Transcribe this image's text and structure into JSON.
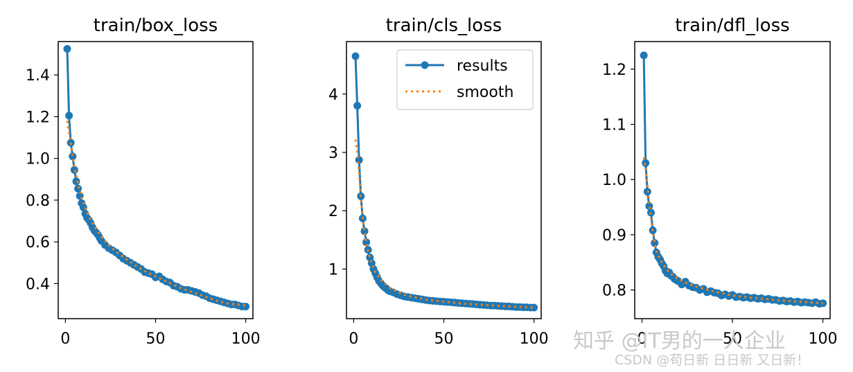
{
  "chart_data": [
    {
      "type": "line",
      "title": "train/box_loss",
      "xlim": [
        -4,
        104
      ],
      "ylim": [
        0.232,
        1.56
      ],
      "xticks": [
        0,
        50,
        100
      ],
      "yticks": [
        0.4,
        0.6,
        0.8,
        1.0,
        1.2,
        1.4
      ],
      "ytick_labels": [
        "0.4",
        "0.6",
        "0.8",
        "1.0",
        "1.2",
        "1.4"
      ],
      "series": [
        {
          "name": "results",
          "x": [
            1,
            2,
            3,
            4,
            5,
            6,
            7,
            8,
            9,
            10,
            11,
            12,
            13,
            14,
            15,
            16,
            17,
            18,
            19,
            20,
            22,
            24,
            26,
            28,
            30,
            32,
            34,
            36,
            38,
            40,
            42,
            44,
            46,
            48,
            50,
            52,
            54,
            56,
            58,
            60,
            62,
            64,
            66,
            68,
            70,
            72,
            74,
            76,
            78,
            80,
            82,
            84,
            86,
            88,
            90,
            92,
            94,
            96,
            98,
            100
          ],
          "y": [
            1.525,
            1.205,
            1.075,
            1.01,
            0.945,
            0.89,
            0.855,
            0.82,
            0.785,
            0.765,
            0.735,
            0.715,
            0.705,
            0.69,
            0.67,
            0.655,
            0.645,
            0.635,
            0.62,
            0.605,
            0.585,
            0.57,
            0.56,
            0.55,
            0.535,
            0.52,
            0.51,
            0.5,
            0.49,
            0.48,
            0.47,
            0.455,
            0.45,
            0.445,
            0.43,
            0.435,
            0.42,
            0.41,
            0.405,
            0.39,
            0.385,
            0.375,
            0.37,
            0.37,
            0.365,
            0.36,
            0.355,
            0.345,
            0.34,
            0.33,
            0.325,
            0.32,
            0.315,
            0.31,
            0.305,
            0.3,
            0.3,
            0.295,
            0.29,
            0.29
          ]
        },
        {
          "name": "smooth",
          "x": [
            1,
            3,
            5,
            7,
            9,
            12,
            15,
            20,
            25,
            30,
            35,
            40,
            45,
            50,
            55,
            60,
            65,
            70,
            75,
            80,
            85,
            90,
            95,
            100
          ],
          "y": [
            1.18,
            1.07,
            0.96,
            0.88,
            0.81,
            0.74,
            0.69,
            0.625,
            0.575,
            0.54,
            0.51,
            0.48,
            0.455,
            0.435,
            0.415,
            0.395,
            0.375,
            0.36,
            0.345,
            0.33,
            0.315,
            0.305,
            0.3,
            0.295
          ]
        }
      ]
    },
    {
      "type": "line",
      "title": "train/cls_loss",
      "xlim": [
        -4,
        104
      ],
      "ylim": [
        0.15,
        4.9
      ],
      "xticks": [
        0,
        50,
        100
      ],
      "yticks": [
        1,
        2,
        3,
        4
      ],
      "ytick_labels": [
        "1",
        "2",
        "3",
        "4"
      ],
      "legend": {
        "placement": "upper right",
        "entries": [
          "results",
          "smooth"
        ]
      },
      "series": [
        {
          "name": "results",
          "x": [
            1,
            2,
            3,
            4,
            5,
            6,
            7,
            8,
            9,
            10,
            11,
            12,
            13,
            14,
            15,
            16,
            17,
            18,
            19,
            20,
            22,
            24,
            26,
            28,
            30,
            32,
            34,
            36,
            38,
            40,
            42,
            44,
            46,
            48,
            50,
            52,
            54,
            56,
            58,
            60,
            62,
            64,
            66,
            68,
            70,
            72,
            74,
            76,
            78,
            80,
            82,
            84,
            86,
            88,
            90,
            92,
            94,
            96,
            98,
            100
          ],
          "y": [
            4.65,
            3.8,
            2.87,
            2.25,
            1.87,
            1.65,
            1.46,
            1.33,
            1.2,
            1.1,
            1.0,
            0.93,
            0.86,
            0.8,
            0.76,
            0.72,
            0.69,
            0.67,
            0.64,
            0.62,
            0.6,
            0.57,
            0.55,
            0.53,
            0.52,
            0.51,
            0.5,
            0.49,
            0.48,
            0.47,
            0.46,
            0.455,
            0.45,
            0.445,
            0.44,
            0.435,
            0.43,
            0.425,
            0.42,
            0.415,
            0.41,
            0.405,
            0.4,
            0.395,
            0.39,
            0.385,
            0.38,
            0.375,
            0.375,
            0.37,
            0.365,
            0.36,
            0.36,
            0.355,
            0.35,
            0.35,
            0.345,
            0.345,
            0.34,
            0.34
          ]
        },
        {
          "name": "smooth",
          "x": [
            1,
            2,
            3,
            4,
            5,
            6,
            7,
            8,
            10,
            12,
            15,
            20,
            25,
            30,
            40,
            50,
            60,
            70,
            80,
            90,
            100
          ],
          "y": [
            3.22,
            3.0,
            2.65,
            2.2,
            1.9,
            1.65,
            1.45,
            1.3,
            1.1,
            0.95,
            0.82,
            0.68,
            0.6,
            0.54,
            0.48,
            0.44,
            0.41,
            0.39,
            0.37,
            0.355,
            0.34
          ]
        }
      ]
    },
    {
      "type": "line",
      "title": "train/dfl_loss",
      "xlim": [
        -4,
        104
      ],
      "ylim": [
        0.748,
        1.25
      ],
      "xticks": [
        0,
        50,
        100
      ],
      "yticks": [
        0.8,
        0.9,
        1.0,
        1.1,
        1.2
      ],
      "ytick_labels": [
        "0.8",
        "0.9",
        "1.0",
        "1.1",
        "1.2"
      ],
      "series": [
        {
          "name": "results",
          "x": [
            1,
            2,
            3,
            4,
            5,
            6,
            7,
            8,
            9,
            10,
            11,
            12,
            13,
            14,
            15,
            16,
            17,
            18,
            19,
            20,
            22,
            24,
            26,
            28,
            30,
            32,
            34,
            36,
            38,
            40,
            42,
            44,
            46,
            48,
            50,
            52,
            54,
            56,
            58,
            60,
            62,
            64,
            66,
            68,
            70,
            72,
            74,
            76,
            78,
            80,
            82,
            84,
            86,
            88,
            90,
            92,
            94,
            96,
            98,
            100
          ],
          "y": [
            1.225,
            1.03,
            0.978,
            0.952,
            0.94,
            0.908,
            0.885,
            0.868,
            0.86,
            0.855,
            0.848,
            0.843,
            0.835,
            0.83,
            0.832,
            0.826,
            0.824,
            0.82,
            0.818,
            0.816,
            0.81,
            0.815,
            0.808,
            0.805,
            0.804,
            0.8,
            0.802,
            0.796,
            0.798,
            0.795,
            0.794,
            0.79,
            0.792,
            0.789,
            0.791,
            0.787,
            0.788,
            0.786,
            0.787,
            0.785,
            0.786,
            0.784,
            0.785,
            0.783,
            0.784,
            0.782,
            0.782,
            0.78,
            0.781,
            0.779,
            0.78,
            0.778,
            0.779,
            0.777,
            0.778,
            0.777,
            0.776,
            0.778,
            0.775,
            0.776
          ]
        },
        {
          "name": "smooth",
          "x": [
            1,
            2,
            3,
            4,
            5,
            6,
            7,
            8,
            10,
            12,
            15,
            20,
            25,
            30,
            40,
            50,
            60,
            70,
            80,
            90,
            100
          ],
          "y": [
            1.04,
            1.02,
            0.99,
            0.96,
            0.93,
            0.905,
            0.885,
            0.87,
            0.855,
            0.845,
            0.832,
            0.82,
            0.812,
            0.806,
            0.797,
            0.79,
            0.786,
            0.783,
            0.78,
            0.778,
            0.776
          ]
        }
      ]
    }
  ],
  "watermark": {
    "line1": "知乎 @IT男的一人企业",
    "line2": "CSDN @苟日新 日日新 又日新！"
  },
  "colors": {
    "results": "#1f77b4",
    "smooth": "#ff7f0e"
  }
}
